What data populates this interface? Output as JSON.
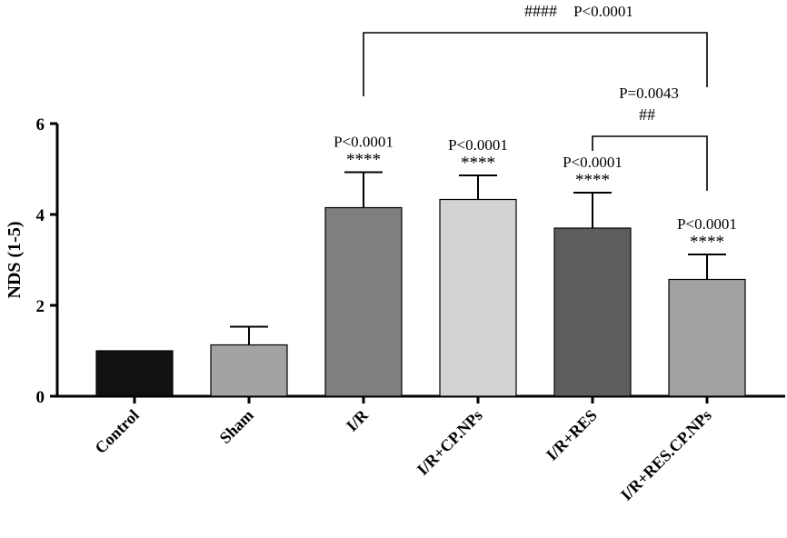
{
  "chart_data": {
    "type": "bar",
    "ylabel": "NDS (1-5)",
    "ylim": [
      0,
      6
    ],
    "yticks": [
      0,
      2,
      4,
      6
    ],
    "ytick_labels": [
      "0",
      "2",
      "4",
      "6"
    ],
    "grid": false,
    "categories": [
      "Control",
      "Sham",
      "I/R",
      "I/R+CP.NPs",
      "I/R+RES",
      "I/R+RES.CP.NPs"
    ],
    "values": [
      1.0,
      1.13,
      4.15,
      4.33,
      3.7,
      2.57
    ],
    "errors": [
      0,
      0.4,
      0.78,
      0.53,
      0.78,
      0.55
    ],
    "bar_colors": [
      "#111111",
      "#a3a3a3",
      "#7f7f7f",
      "#d3d3d3",
      "#5d5d5d",
      "#a2a2a2"
    ],
    "annotations": [
      {
        "category": "I/R",
        "p_label": "P<0.0001",
        "stars": "****"
      },
      {
        "category": "I/R+CP.NPs",
        "p_label": "P<0.0001",
        "stars": "****"
      },
      {
        "category": "I/R+RES",
        "p_label": "P<0.0001",
        "stars": "****"
      },
      {
        "category": "I/R+RES.CP.NPs",
        "p_label": "P<0.0001",
        "stars": "****"
      }
    ],
    "brackets": [
      {
        "from": "I/R",
        "to": "I/R+RES.CP.NPs",
        "hashes": "####",
        "p_label": "P<0.0001"
      },
      {
        "from": "I/R+RES",
        "to": "I/R+RES.CP.NPs",
        "hashes": "##",
        "p_label": "P=0.0043"
      }
    ]
  }
}
